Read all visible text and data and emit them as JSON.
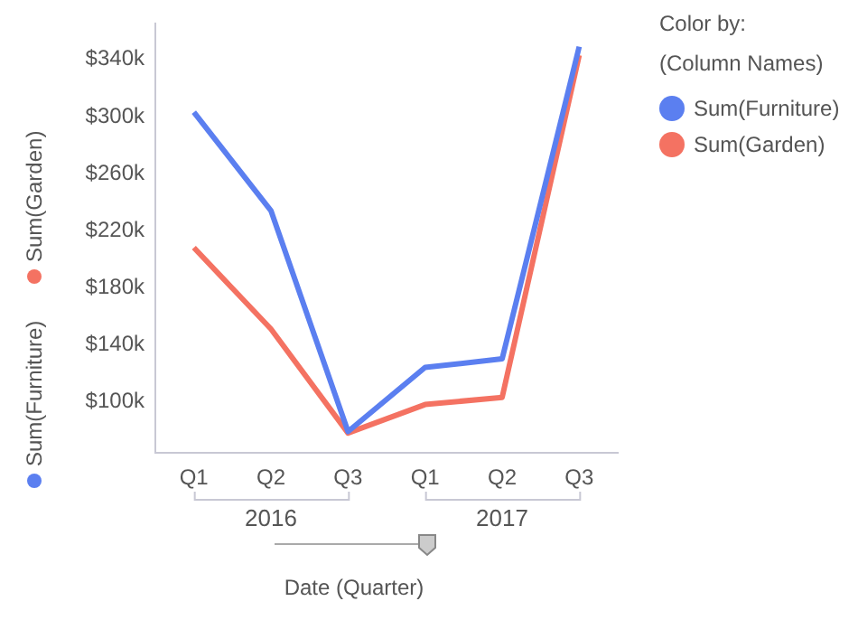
{
  "chart_data": {
    "type": "line",
    "xlabel": "Date (Quarter)",
    "legend_title": "Color by:\n(Column Names)",
    "legend": "right",
    "categories": [
      "Q1",
      "Q2",
      "Q3",
      "Q1",
      "Q2",
      "Q3"
    ],
    "annotations": [
      "2016",
      "2017"
    ],
    "ylim": [
      64000,
      365000
    ],
    "yticks": [
      {
        "value": 100000,
        "label": "$100k"
      },
      {
        "value": 140000,
        "label": "$140k"
      },
      {
        "value": 180000,
        "label": "$180k"
      },
      {
        "value": 220000,
        "label": "$220k"
      },
      {
        "value": 260000,
        "label": "$260k"
      },
      {
        "value": 300000,
        "label": "$300k"
      },
      {
        "value": 340000,
        "label": "$340k"
      }
    ],
    "marker": "none",
    "series": [
      {
        "name": "Sum(Furniture)",
        "color": "#5b7ff0",
        "values": [
          303000,
          234000,
          79000,
          124000,
          130000,
          349000
        ]
      },
      {
        "name": "Sum(Garden)",
        "color": "#f47262",
        "values": [
          208000,
          151000,
          78000,
          98000,
          103000,
          343000
        ]
      }
    ]
  }
}
